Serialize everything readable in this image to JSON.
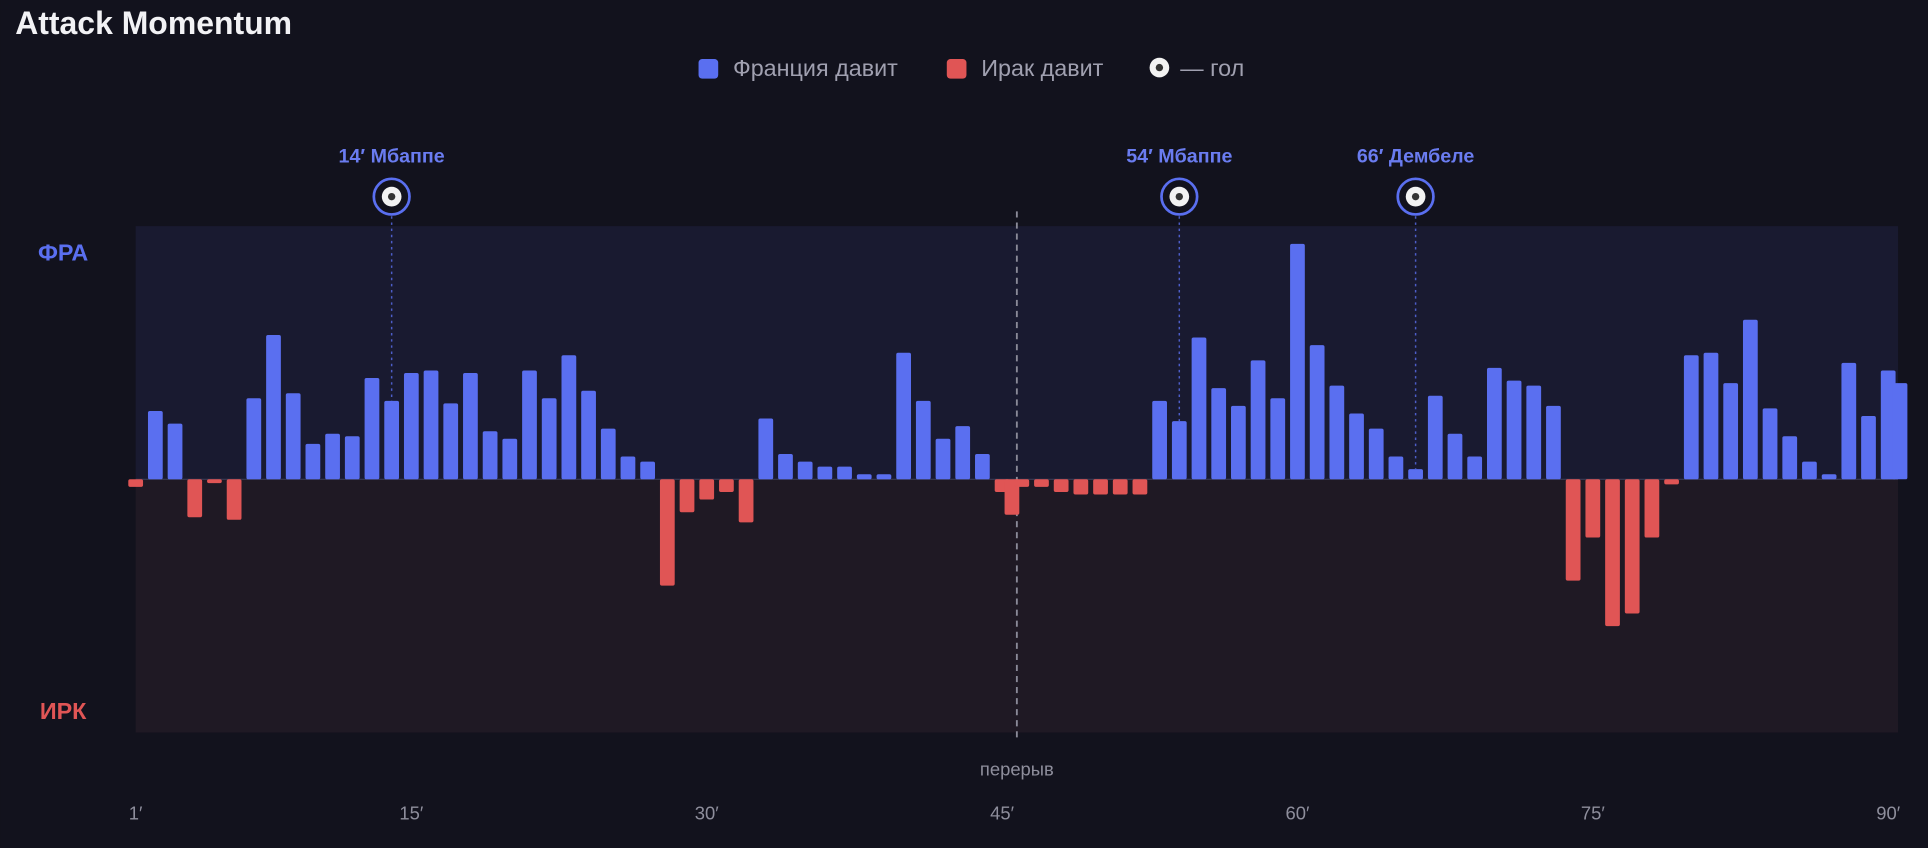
{
  "chart_data": {
    "type": "momentum",
    "title": "Attack Momentum",
    "legend": [
      {
        "name": "Франция давит",
        "color": "#5a6ff0"
      },
      {
        "name": "Ирак давит",
        "color": "#e05555"
      },
      {
        "name": "— гол"
      }
    ],
    "top_label": "ФРА",
    "bottom_label": "ИРК",
    "pos_color": "#5a6ff0",
    "neg_color": "#e05555",
    "x": [
      1,
      2,
      3,
      4,
      5,
      6,
      7,
      8,
      9,
      10,
      11,
      12,
      13,
      14,
      15,
      16,
      17,
      18,
      19,
      20,
      21,
      22,
      23,
      24,
      25,
      26,
      27,
      28,
      29,
      30,
      31,
      32,
      33,
      34,
      35,
      36,
      37,
      38,
      39,
      40,
      41,
      42,
      43,
      44,
      45,
      45.5,
      46,
      47,
      48,
      49,
      50,
      51,
      52,
      53,
      54,
      55,
      56,
      57,
      58,
      59,
      60,
      61,
      62,
      63,
      64,
      65,
      66,
      67,
      68,
      69,
      70,
      71,
      72,
      73,
      74,
      75,
      76,
      77,
      78,
      79,
      80,
      81,
      82,
      83,
      84,
      85,
      86,
      87,
      88,
      89,
      90,
      90.6
    ],
    "values": [
      -3,
      27,
      22,
      -15,
      -1.5,
      -16,
      32,
      57,
      34,
      14,
      18,
      17,
      40,
      31,
      42,
      43,
      30,
      42,
      19,
      16,
      43,
      32,
      49,
      35,
      20,
      9,
      7,
      -42,
      -13,
      -8,
      -5,
      -17,
      24,
      10,
      7,
      5,
      5,
      2,
      2,
      50,
      31,
      16,
      21,
      10,
      -5,
      -14,
      -3,
      -3,
      -5,
      -6,
      -6,
      -6,
      -6,
      31,
      23,
      56,
      36,
      29,
      47,
      32,
      93,
      53,
      37,
      26,
      20,
      9,
      4,
      33,
      18,
      9,
      44,
      39,
      37,
      29,
      -40,
      -23,
      -58,
      -53,
      -23,
      -2,
      49,
      50,
      38,
      63,
      28,
      17,
      7,
      2,
      46,
      25,
      43,
      38
    ],
    "xlim": [
      1,
      90
    ],
    "xticks": [
      {
        "value": 1,
        "label": "1′"
      },
      {
        "value": 15,
        "label": "15′"
      },
      {
        "value": 30,
        "label": "30′"
      },
      {
        "value": 45,
        "label": "45′"
      },
      {
        "value": 60,
        "label": "60′"
      },
      {
        "value": 75,
        "label": "75′"
      },
      {
        "value": 90,
        "label": "90′"
      }
    ],
    "ylim": [
      -100,
      100
    ],
    "halftime": {
      "x": 45.75,
      "label": "перерыв"
    },
    "goals": [
      {
        "x": 14,
        "label": "14′ Мбаппе"
      },
      {
        "x": 54,
        "label": "54′ Мбаппе"
      },
      {
        "x": 66,
        "label": "66′ Дембеле"
      }
    ]
  }
}
